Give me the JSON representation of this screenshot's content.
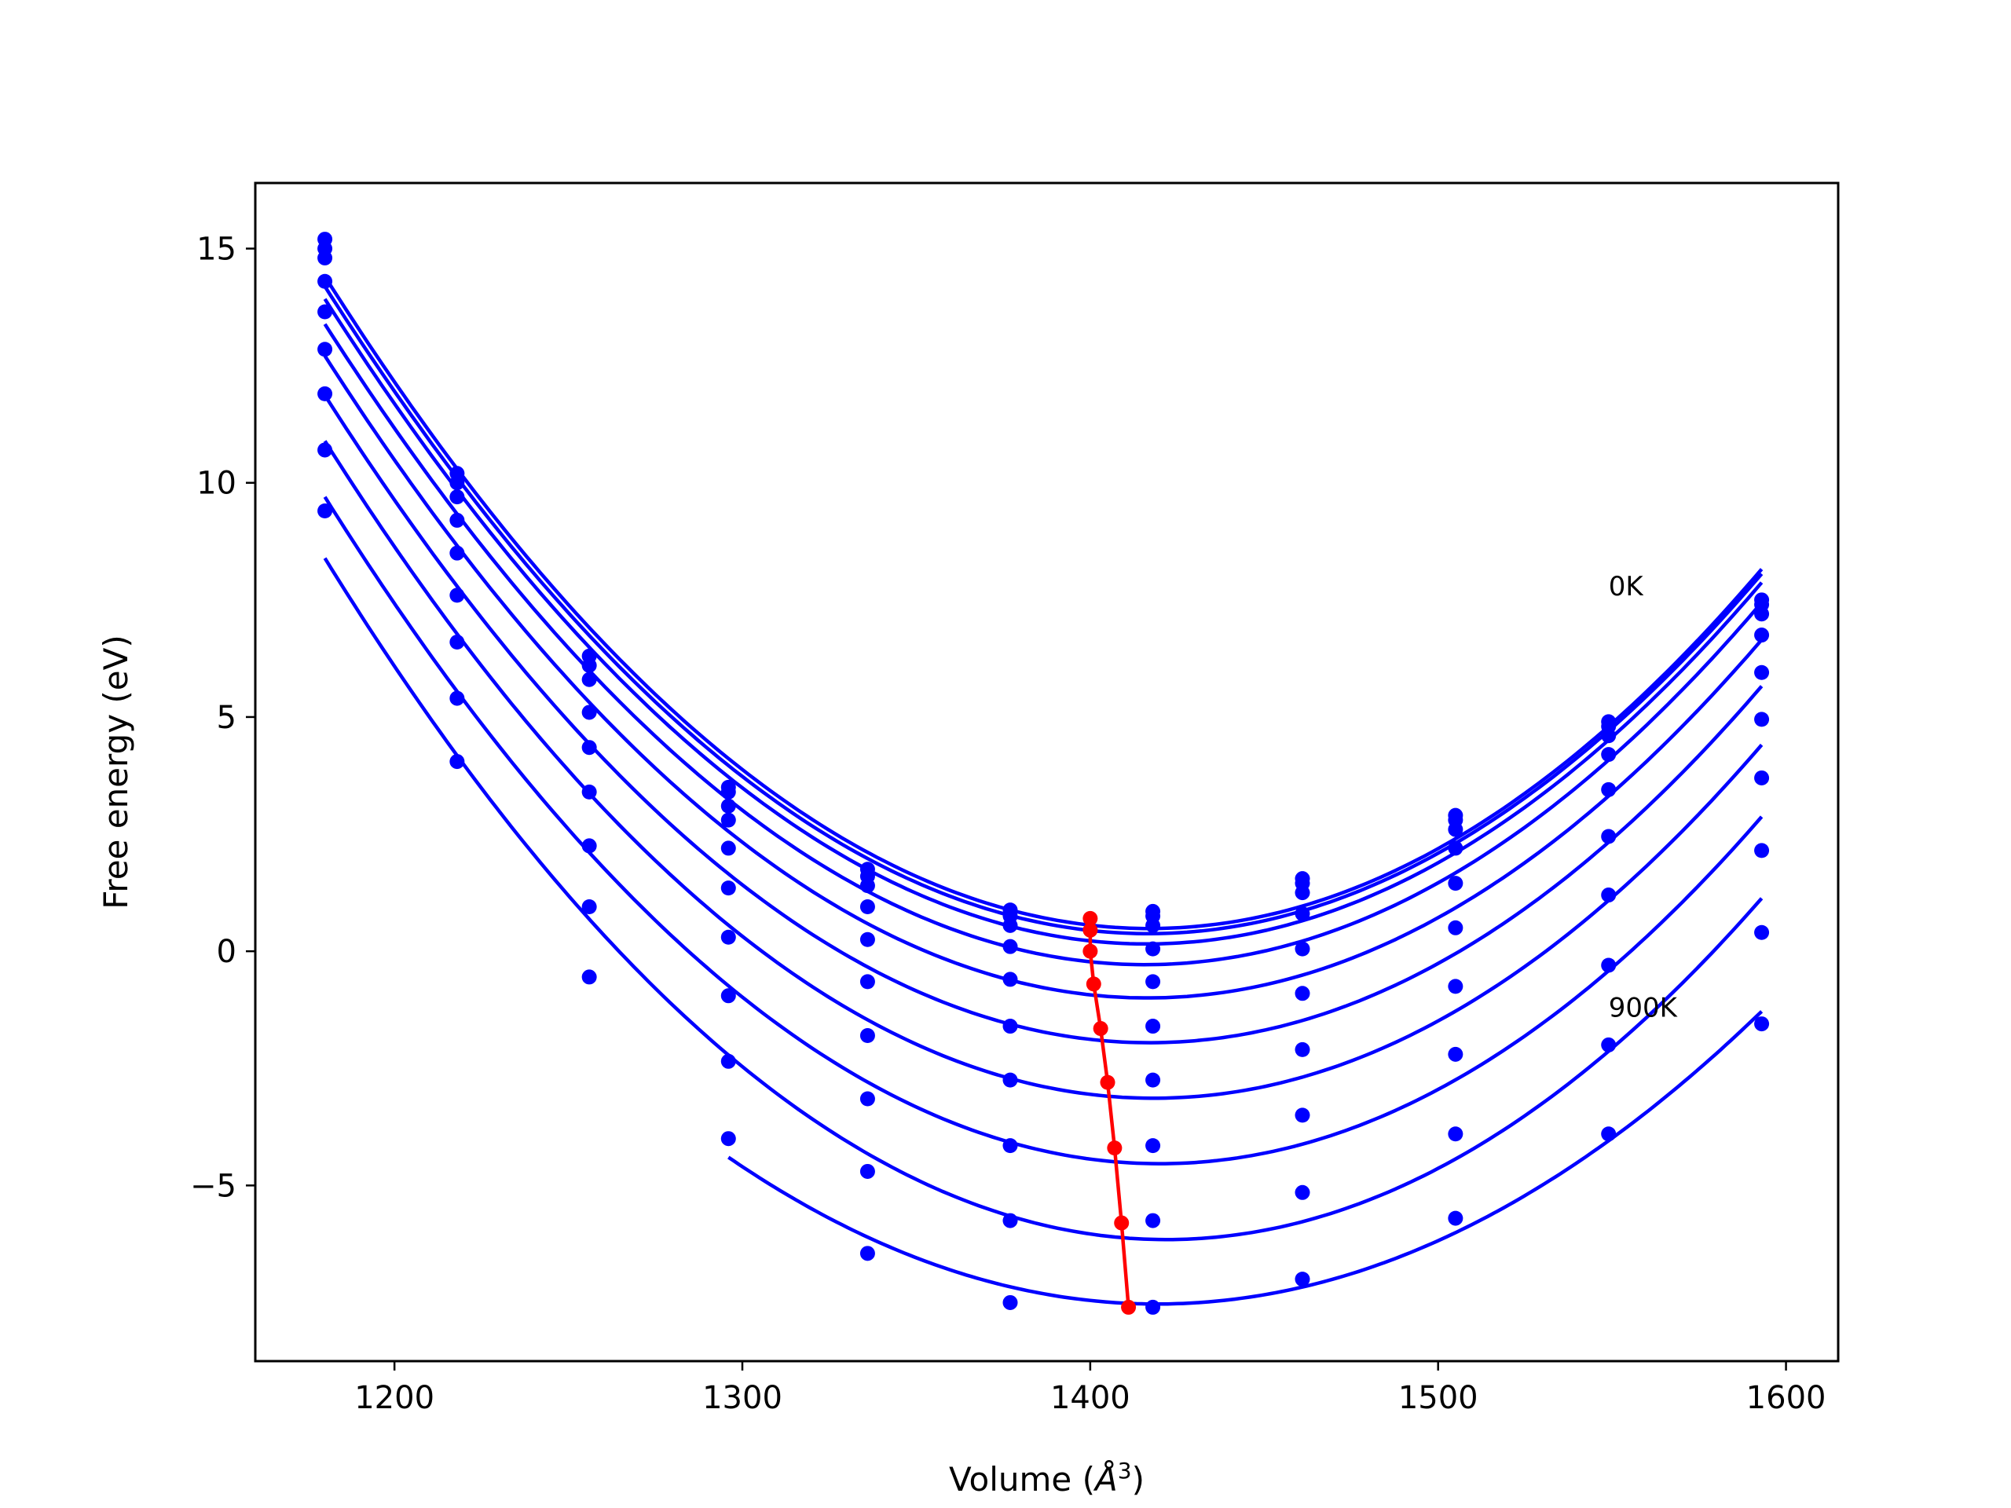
{
  "chart_data": {
    "type": "line",
    "title": "",
    "xlabel": "Volume (",
    "xlabel_math": "Å",
    "xlabel_exp": "3",
    "xlabel_close": ")",
    "ylabel": "Free energy (eV)",
    "xlim": [
      1160,
      1615
    ],
    "ylim": [
      -8.75,
      16.4
    ],
    "xticks": [
      1200,
      1300,
      1400,
      1500,
      1600
    ],
    "xtick_labels": [
      "1200",
      "1300",
      "1400",
      "1500",
      "1600"
    ],
    "yticks": [
      15,
      10,
      5,
      0,
      -5
    ],
    "ytick_labels": [
      "15",
      "10",
      "5",
      "0",
      "−5"
    ],
    "grid": false,
    "legend": "none",
    "annotations": [
      {
        "text": "0K",
        "x": 1549,
        "y": 7.6
      },
      {
        "text": "900K",
        "x": 1549,
        "y": -1.4
      }
    ],
    "colors": {
      "curves": "#0000ff",
      "minima": "#ff0000"
    },
    "volumes": [
      1180,
      1218,
      1256,
      1296,
      1336,
      1377,
      1418,
      1461,
      1505,
      1549,
      1593
    ],
    "series": [
      {
        "values": [
          15.2,
          10.2,
          6.3,
          3.5,
          1.75,
          0.88,
          0.85,
          1.55,
          2.9,
          4.9,
          7.5
        ]
      },
      {
        "values": [
          15.0,
          10.0,
          6.1,
          3.4,
          1.6,
          0.75,
          0.75,
          1.45,
          2.8,
          4.8,
          7.4
        ]
      },
      {
        "values": [
          14.8,
          9.7,
          5.8,
          3.1,
          1.4,
          0.55,
          0.55,
          1.25,
          2.6,
          4.6,
          7.2
        ]
      },
      {
        "values": [
          14.3,
          9.2,
          5.1,
          2.8,
          0.95,
          0.1,
          0.05,
          0.8,
          2.2,
          4.2,
          6.75
        ]
      },
      {
        "values": [
          13.65,
          8.5,
          4.35,
          2.2,
          0.25,
          -0.6,
          -0.65,
          0.05,
          1.45,
          3.45,
          5.95
        ]
      },
      {
        "values": [
          12.85,
          7.6,
          3.4,
          1.35,
          -0.65,
          -1.6,
          -1.6,
          -0.9,
          0.5,
          2.45,
          4.95
        ]
      },
      {
        "values": [
          11.9,
          6.6,
          2.25,
          0.3,
          -1.8,
          -2.75,
          -2.75,
          -2.1,
          -0.75,
          1.2,
          3.7
        ]
      },
      {
        "values": [
          10.7,
          5.4,
          0.95,
          -0.95,
          -3.15,
          -4.15,
          -4.15,
          -3.5,
          -2.2,
          -0.3,
          2.15
        ]
      },
      {
        "values": [
          9.4,
          4.05,
          -0.55,
          -2.35,
          -4.7,
          -5.75,
          -5.75,
          -5.15,
          -3.9,
          -2.0,
          0.4
        ]
      },
      {
        "values": [
          null,
          null,
          null,
          -4.0,
          -6.45,
          -7.5,
          -7.6,
          -7.0,
          -5.7,
          -3.9,
          -1.55
        ]
      }
    ],
    "minima": {
      "name": "",
      "x": [
        1400,
        1400,
        1400,
        1401,
        1403,
        1405,
        1407,
        1409,
        1411
      ],
      "y": [
        0.7,
        0.45,
        0.0,
        -0.7,
        -1.65,
        -2.8,
        -4.2,
        -5.8,
        -7.6
      ]
    }
  }
}
